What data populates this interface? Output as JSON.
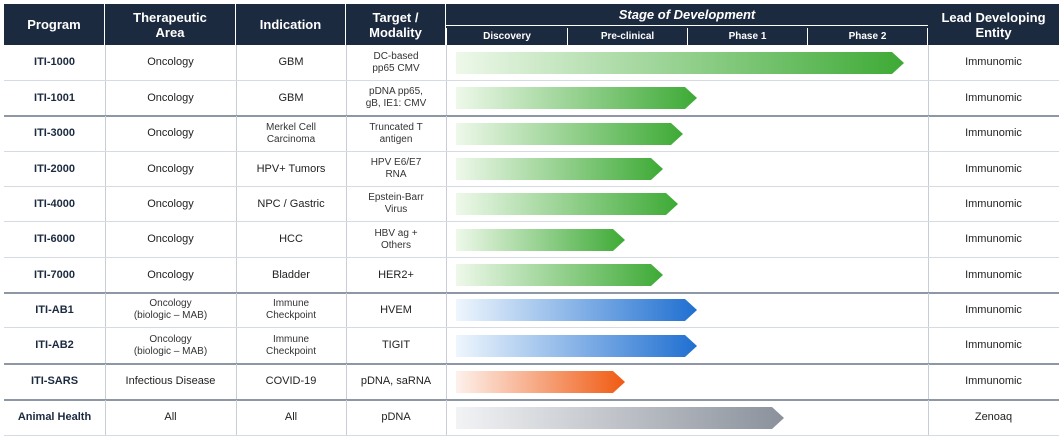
{
  "header": {
    "program": "Program",
    "therapeutic_area": "Therapeutic\nArea",
    "indication": "Indication",
    "target_modality": "Target /\nModality",
    "stage_title": "Stage of Development",
    "phases": [
      "Discovery",
      "Pre-clinical",
      "Phase 1",
      "Phase 2"
    ],
    "lead_entity": "Lead Developing\nEntity"
  },
  "rows": [
    {
      "program": "ITI-1000",
      "area": "Oncology",
      "indication": "GBM",
      "target": "DC-based\npp65 CMV",
      "entity": "Immunomic",
      "stage_progress": 0.93,
      "color": "green"
    },
    {
      "program": "ITI-1001",
      "area": "Oncology",
      "indication": "GBM",
      "target": "pDNA  pp65,\ngB, IE1: CMV",
      "entity": "Immunomic",
      "stage_progress": 0.5,
      "color": "green"
    },
    {
      "program": "ITI-3000",
      "area": "Oncology",
      "indication": "Merkel Cell\nCarcinoma",
      "target": "Truncated T\nantigen",
      "entity": "Immunomic",
      "stage_progress": 0.47,
      "color": "green"
    },
    {
      "program": "ITI-2000",
      "area": "Oncology",
      "indication": "HPV+ Tumors",
      "target": "HPV E6/E7\nRNA",
      "entity": "Immunomic",
      "stage_progress": 0.43,
      "color": "green"
    },
    {
      "program": "ITI-4000",
      "area": "Oncology",
      "indication": "NPC / Gastric",
      "target": "Epstein-Barr\nVirus",
      "entity": "Immunomic",
      "stage_progress": 0.46,
      "color": "green"
    },
    {
      "program": "ITI-6000",
      "area": "Oncology",
      "indication": "HCC",
      "target": "HBV ag +\nOthers",
      "entity": "Immunomic",
      "stage_progress": 0.35,
      "color": "green"
    },
    {
      "program": "ITI-7000",
      "area": "Oncology",
      "indication": "Bladder",
      "target": "HER2+",
      "entity": "Immunomic",
      "stage_progress": 0.43,
      "color": "green"
    },
    {
      "program": "ITI-AB1",
      "area": "Oncology\n(biologic – MAB)",
      "indication": "Immune\nCheckpoint",
      "target": "HVEM",
      "entity": "Immunomic",
      "stage_progress": 0.5,
      "color": "blue"
    },
    {
      "program": "ITI-AB2",
      "area": "Oncology\n(biologic – MAB)",
      "indication": "Immune\nCheckpoint",
      "target": "TIGIT",
      "entity": "Immunomic",
      "stage_progress": 0.5,
      "color": "blue"
    },
    {
      "program": "ITI-SARS",
      "area": "Infectious Disease",
      "indication": "COVID-19",
      "target": "pDNA, saRNA",
      "entity": "Immunomic",
      "stage_progress": 0.35,
      "color": "orange"
    },
    {
      "program": "Animal Health",
      "area": "All",
      "indication": "All",
      "target": "pDNA",
      "entity": "Zenoaq",
      "stage_progress": 0.68,
      "color": "gray"
    }
  ],
  "colors": {
    "header_bg": "#1c2a3f",
    "green_start": "#eef8ea",
    "green_end": "#3daa35",
    "blue_start": "#eef6fd",
    "blue_end": "#1f6fd1",
    "orange_start": "#fdf1ec",
    "orange_end": "#f05a12",
    "gray_start": "#f2f3f5",
    "gray_end": "#8a919b"
  }
}
